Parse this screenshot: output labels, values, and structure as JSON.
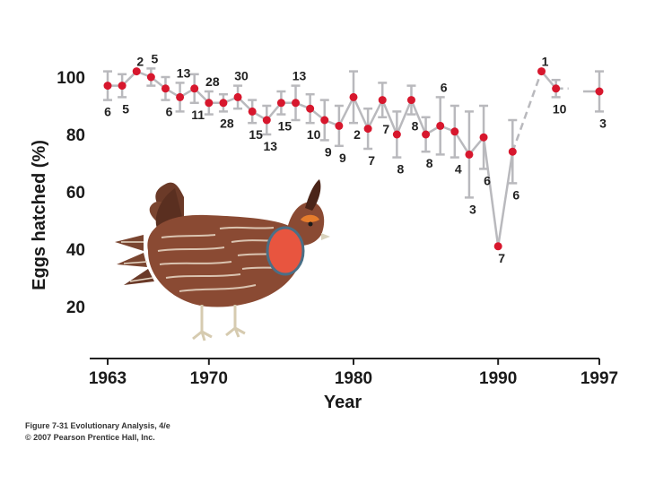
{
  "chart_data": {
    "type": "line",
    "title": "",
    "xlabel": "Year",
    "ylabel": "Eggs hatched (%)",
    "xlim": [
      1963,
      1997
    ],
    "ylim": [
      0,
      110
    ],
    "x_ticks": [
      1963,
      1970,
      1980,
      1990,
      1997
    ],
    "y_ticks": [
      20,
      40,
      60,
      80,
      100
    ],
    "series": [
      {
        "name": "Eggs hatched",
        "points": [
          {
            "x": 1963,
            "y": 97,
            "n": "6",
            "err": 5
          },
          {
            "x": 1964,
            "y": 97,
            "n": "5",
            "err": 4
          },
          {
            "x": 1965,
            "y": 102,
            "n": "2",
            "err": 0
          },
          {
            "x": 1966,
            "y": 100,
            "n": "5",
            "err": 3
          },
          {
            "x": 1967,
            "y": 96,
            "n": "6",
            "err": 4
          },
          {
            "x": 1968,
            "y": 93,
            "n": "13",
            "err": 5
          },
          {
            "x": 1969,
            "y": 96,
            "n": "11",
            "err": 5
          },
          {
            "x": 1970,
            "y": 91,
            "n": "28",
            "err": 4
          },
          {
            "x": 1971,
            "y": 91,
            "n": "28",
            "err": 3
          },
          {
            "x": 1972,
            "y": 93,
            "n": "30",
            "err": 4
          },
          {
            "x": 1973,
            "y": 88,
            "n": "15",
            "err": 4
          },
          {
            "x": 1974,
            "y": 85,
            "n": "13",
            "err": 5
          },
          {
            "x": 1975,
            "y": 91,
            "n": "15",
            "err": 4
          },
          {
            "x": 1976,
            "y": 91,
            "n": "13",
            "err": 6
          },
          {
            "x": 1977,
            "y": 89,
            "n": "10",
            "err": 5
          },
          {
            "x": 1978,
            "y": 85,
            "n": "9",
            "err": 7
          },
          {
            "x": 1979,
            "y": 83,
            "n": "9",
            "err": 7
          },
          {
            "x": 1980,
            "y": 93,
            "n": "2",
            "err": 9
          },
          {
            "x": 1981,
            "y": 82,
            "n": "7",
            "err": 7
          },
          {
            "x": 1982,
            "y": 92,
            "n": "7",
            "err": 6
          },
          {
            "x": 1983,
            "y": 80,
            "n": "8",
            "err": 8
          },
          {
            "x": 1984,
            "y": 92,
            "n": "8",
            "err": 5
          },
          {
            "x": 1985,
            "y": 80,
            "n": "8",
            "err": 6
          },
          {
            "x": 1986,
            "y": 83,
            "n": "6",
            "err": 10
          },
          {
            "x": 1987,
            "y": 81,
            "n": "4",
            "err": 9
          },
          {
            "x": 1988,
            "y": 73,
            "n": "3",
            "err": 15
          },
          {
            "x": 1989,
            "y": 79,
            "n": "6",
            "err": 11
          },
          {
            "x": 1990,
            "y": 41,
            "n": "7",
            "err": 0
          },
          {
            "x": 1991,
            "y": 74,
            "n": "6",
            "err": 11
          },
          {
            "x": 1993,
            "y": 102,
            "n": "1",
            "err": 0
          },
          {
            "x": 1994,
            "y": 96,
            "n": "10",
            "err": 3
          },
          {
            "x": 1997,
            "y": 95,
            "n": "3",
            "err": 7
          }
        ]
      }
    ],
    "colors": {
      "point": "#d7172d",
      "line": "#b9b9bd",
      "errorbar": "#b9b9bd",
      "axis": "#222222"
    }
  },
  "caption": {
    "line1": "Figure 7-31  Evolutionary Analysis, 4/e",
    "line2": "© 2007 Pearson Prentice Hall, Inc."
  },
  "illustration": {
    "icon": "prairie-chicken-icon"
  }
}
